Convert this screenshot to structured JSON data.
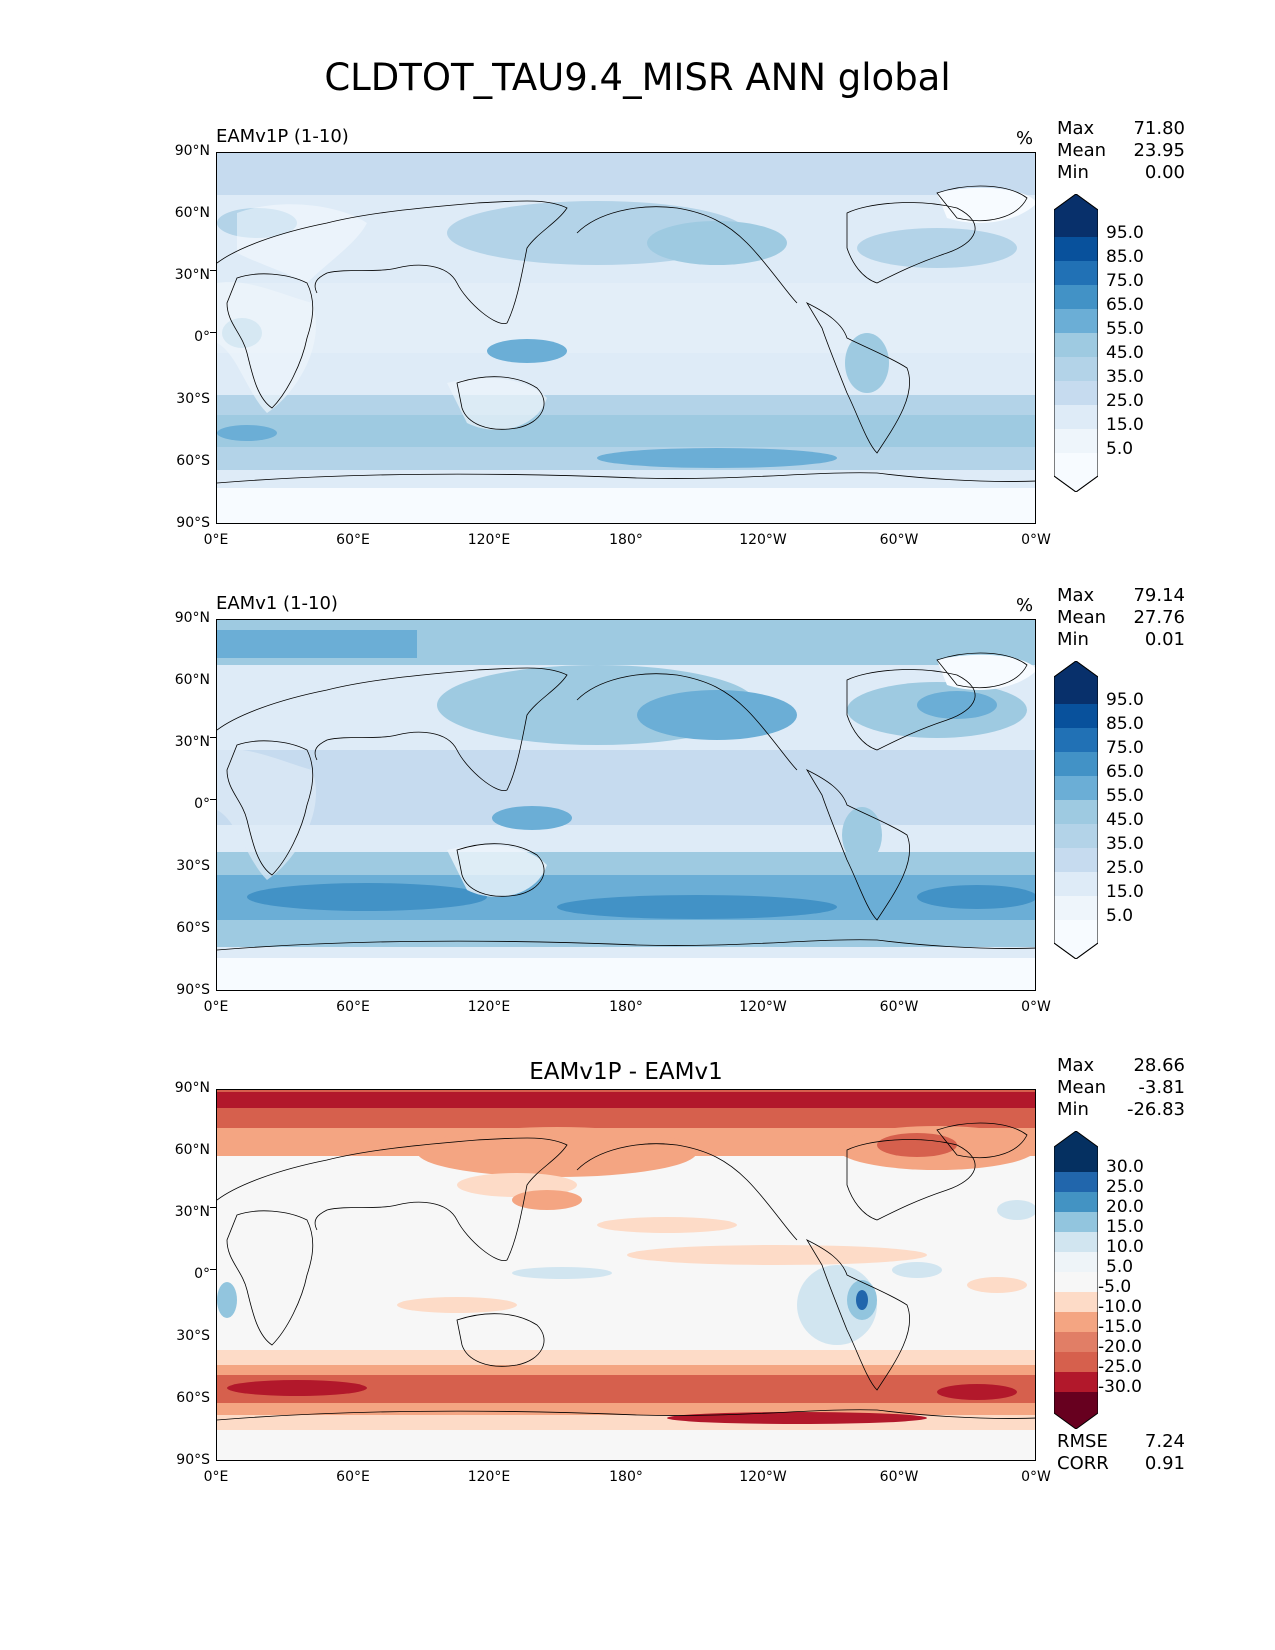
{
  "title": "CLDTOT_TAU9.4_MISR ANN global",
  "x_ticks": [
    "0°E",
    "60°E",
    "120°E",
    "180°",
    "120°W",
    "60°W",
    "0°W"
  ],
  "y_ticks": [
    "90°N",
    "60°N",
    "30°N",
    "0°",
    "30°S",
    "60°S",
    "90°S"
  ],
  "stat_labels": {
    "max": "Max",
    "mean": "Mean",
    "min": "Min",
    "rmse": "RMSE",
    "corr": "CORR"
  },
  "panels": [
    {
      "left_title": "EAMv1P (1-10)",
      "units": "%",
      "stats": {
        "max": "71.80",
        "mean": "23.95",
        "min": "0.00"
      },
      "colorbar_labels": [
        "95.0",
        "85.0",
        "75.0",
        "65.0",
        "55.0",
        "45.0",
        "35.0",
        "25.0",
        "15.0",
        "5.0"
      ]
    },
    {
      "left_title": "EAMv1 (1-10)",
      "units": "%",
      "stats": {
        "max": "79.14",
        "mean": "27.76",
        "min": "0.01"
      },
      "colorbar_labels": [
        "95.0",
        "85.0",
        "75.0",
        "65.0",
        "55.0",
        "45.0",
        "35.0",
        "25.0",
        "15.0",
        "5.0"
      ]
    },
    {
      "center_title": "EAMv1P - EAMv1",
      "stats": {
        "max": "28.66",
        "mean": "-3.81",
        "min": "-26.83"
      },
      "colorbar_labels": [
        "30.0",
        "25.0",
        "20.0",
        "15.0",
        "10.0",
        "5.0",
        "-5.0",
        "-10.0",
        "-15.0",
        "-20.0",
        "-25.0",
        "-30.0"
      ],
      "footer": {
        "rmse": "7.24",
        "corr": "0.91"
      }
    }
  ],
  "colors": {
    "blues": [
      "#f7fbff",
      "#deebf7",
      "#c6dbef",
      "#b3d3e8",
      "#9ecae1",
      "#6baed6",
      "#4292c6",
      "#2171b5",
      "#08519c",
      "#08306b"
    ],
    "diff": [
      "#67001f",
      "#b2182b",
      "#d6604d",
      "#f4a582",
      "#fddbc7",
      "#f7f7f7",
      "#d1e5f0",
      "#92c5de",
      "#4393c3",
      "#2166ac",
      "#053061"
    ]
  }
}
